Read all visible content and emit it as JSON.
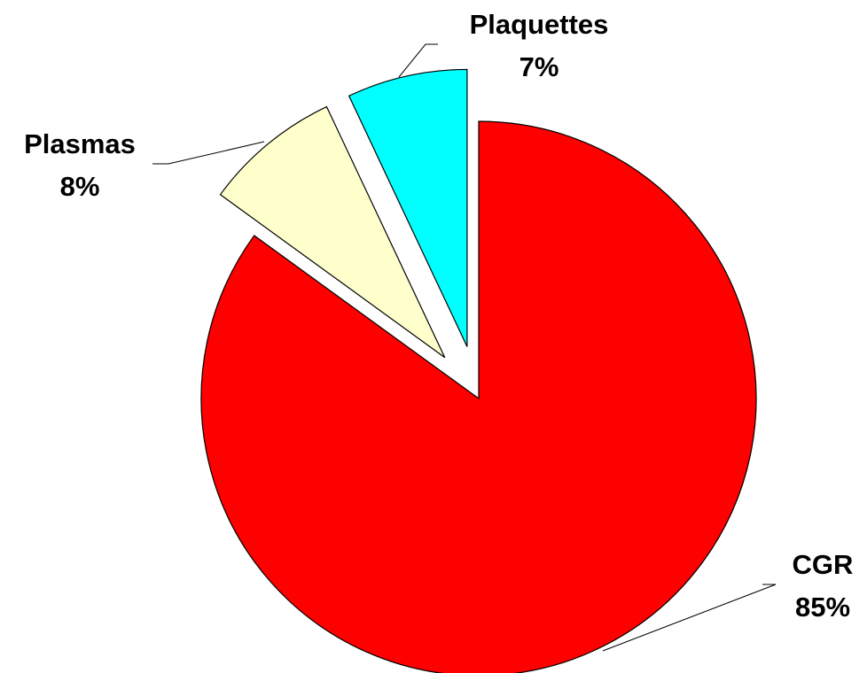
{
  "chart_data": {
    "type": "pie",
    "categories": [
      "CGR",
      "Plasmas",
      "Plaquettes"
    ],
    "values": [
      85,
      8,
      7
    ],
    "value_labels": [
      "85%",
      "8%",
      "7%"
    ],
    "colors": [
      "#ff0000",
      "#ffffcc",
      "#00ffff"
    ]
  }
}
